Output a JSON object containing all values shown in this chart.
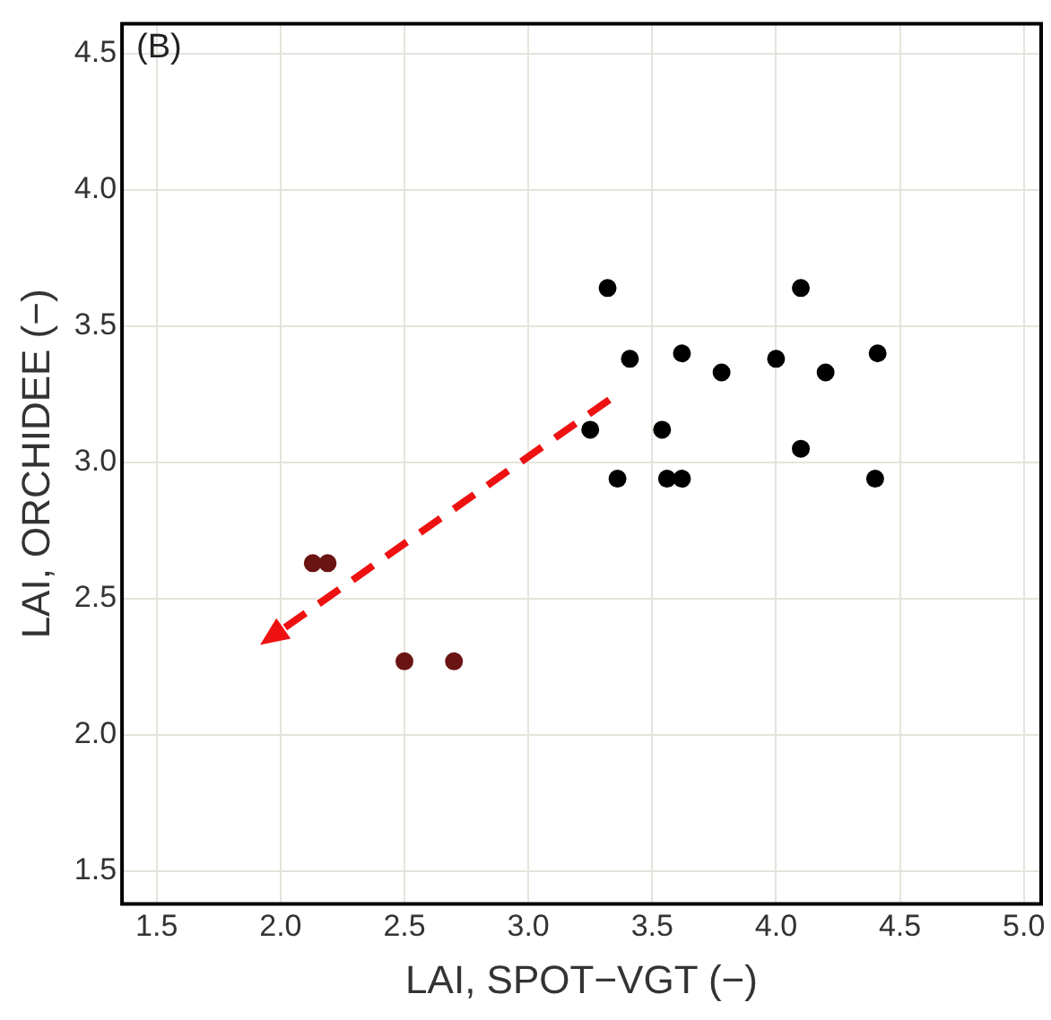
{
  "chart_data": {
    "type": "scatter",
    "xlabel": "LAI, SPOT−VGT (−)",
    "ylabel": "LAI, ORCHIDEE (−)",
    "annotations": [
      "(B)"
    ],
    "xlim": [
      1.36,
      5.07
    ],
    "ylim": [
      1.38,
      4.61
    ],
    "xticks": [
      1.5,
      {
        "value": 2,
        "label": "2.0"
      },
      2.5,
      {
        "value": 3,
        "label": "3.0"
      },
      3.5,
      {
        "value": 4,
        "label": "4.0"
      },
      4.5,
      {
        "value": 5,
        "label": "5.0"
      }
    ],
    "yticks": [
      1.5,
      {
        "value": 2,
        "label": "2.0"
      },
      2.5,
      {
        "value": 3,
        "label": "3.0"
      },
      3.5,
      {
        "value": 4,
        "label": "4.0"
      },
      4.5
    ],
    "grid": true,
    "marker": "circle",
    "series": [
      {
        "color": "#000000",
        "x": [
          3.32,
          4.1,
          3.41,
          3.62,
          3.78,
          4.0,
          4.2,
          4.41,
          3.25,
          3.54,
          4.1,
          3.36,
          3.56,
          3.62,
          4.4
        ],
        "values": [
          3.64,
          3.64,
          3.38,
          3.4,
          3.33,
          3.38,
          3.33,
          3.4,
          3.12,
          3.12,
          3.05,
          2.94,
          2.94,
          2.94,
          2.94
        ]
      },
      {
        "color": "#6b1414",
        "x": [
          2.13,
          2.19,
          2.5,
          2.7
        ],
        "values": [
          2.63,
          2.63,
          2.27,
          2.27
        ]
      }
    ]
  }
}
